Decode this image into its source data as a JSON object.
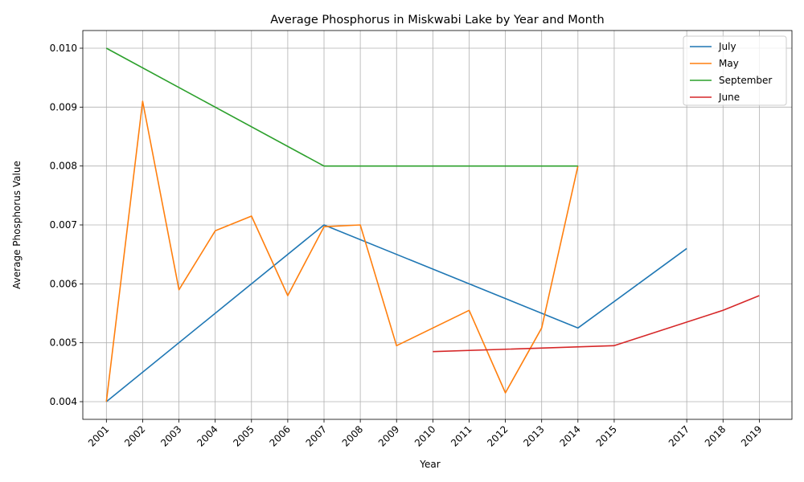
{
  "chart_data": {
    "type": "line",
    "title": "Average Phosphorus in Miskwabi Lake by Year and Month",
    "xlabel": "Year",
    "ylabel": "Average Phosphorus Value",
    "xlim": [
      2000.35,
      2019.9
    ],
    "ylim": [
      0.0037,
      0.0103
    ],
    "x_ticks": [
      2001,
      2002,
      2003,
      2004,
      2005,
      2006,
      2007,
      2008,
      2009,
      2010,
      2011,
      2012,
      2013,
      2014,
      2015,
      2017,
      2018,
      2019
    ],
    "x_tick_labels": [
      "2001",
      "2002",
      "2003",
      "2004",
      "2005",
      "2006",
      "2007",
      "2008",
      "2009",
      "2010",
      "2011",
      "2012",
      "2013",
      "2014",
      "2015",
      "2017",
      "2018",
      "2019"
    ],
    "y_ticks": [
      0.004,
      0.005,
      0.006,
      0.007,
      0.008,
      0.009,
      0.01
    ],
    "y_tick_labels": [
      "0.004",
      "0.005",
      "0.006",
      "0.007",
      "0.008",
      "0.009",
      "0.010"
    ],
    "grid": true,
    "legend_position": "upper right",
    "series": [
      {
        "name": "July",
        "color": "#1f77b4",
        "x": [
          2001,
          2007,
          2014,
          2017
        ],
        "y": [
          0.004,
          0.007,
          0.00525,
          0.0066
        ]
      },
      {
        "name": "May",
        "color": "#ff7f0e",
        "x": [
          2001,
          2002,
          2003,
          2004,
          2005,
          2006,
          2007,
          2008,
          2009,
          2011,
          2012,
          2013,
          2014
        ],
        "y": [
          0.004,
          0.0091,
          0.0059,
          0.0069,
          0.00715,
          0.0058,
          0.00697,
          0.007,
          0.00495,
          0.00555,
          0.00415,
          0.00525,
          0.008
        ]
      },
      {
        "name": "September",
        "color": "#2ca02c",
        "x": [
          2001,
          2007,
          2014
        ],
        "y": [
          0.01,
          0.008,
          0.008
        ]
      },
      {
        "name": "June",
        "color": "#d62728",
        "x": [
          2010,
          2015,
          2018,
          2019
        ],
        "y": [
          0.00485,
          0.00495,
          0.00555,
          0.0058
        ]
      }
    ]
  }
}
